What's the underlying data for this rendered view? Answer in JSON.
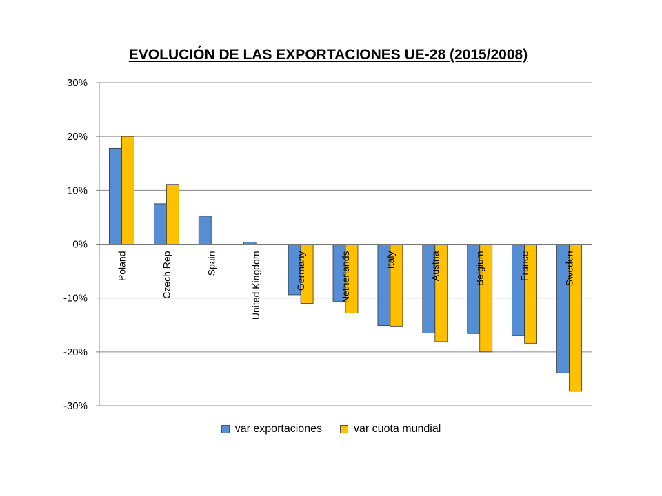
{
  "chart_data": {
    "type": "bar",
    "title": "EVOLUCIÓN DE LAS EXPORTACIONES UE-28 (2015/2008)",
    "xlabel": "",
    "ylabel": "",
    "ylim": [
      -30,
      30
    ],
    "yticks": [
      30,
      20,
      10,
      0,
      -10,
      -20,
      -30
    ],
    "ytick_labels": [
      "30%",
      "20%",
      "10%",
      "0%",
      "-10%",
      "-20%",
      "-30%"
    ],
    "grid": true,
    "legend_position": "bottom",
    "categories": [
      "Poland",
      "Czech Rep",
      "Spain",
      "United Kingdom",
      "Germany",
      "Netherlands",
      "Italy",
      "Austria",
      "Belgium",
      "France",
      "Sweden"
    ],
    "series": [
      {
        "name": "var exportaciones",
        "color": "#558ED5",
        "values": [
          17.8,
          7.5,
          5.2,
          0.4,
          -9.4,
          -10.6,
          -15.1,
          -16.5,
          -16.6,
          -17.0,
          -23.9
        ]
      },
      {
        "name": "var cuota mundial",
        "color": "#FFC000",
        "values": [
          20.0,
          11.1,
          null,
          null,
          -11.0,
          -12.8,
          -15.2,
          -18.1,
          -20.0,
          -18.4,
          -27.3
        ]
      }
    ]
  }
}
